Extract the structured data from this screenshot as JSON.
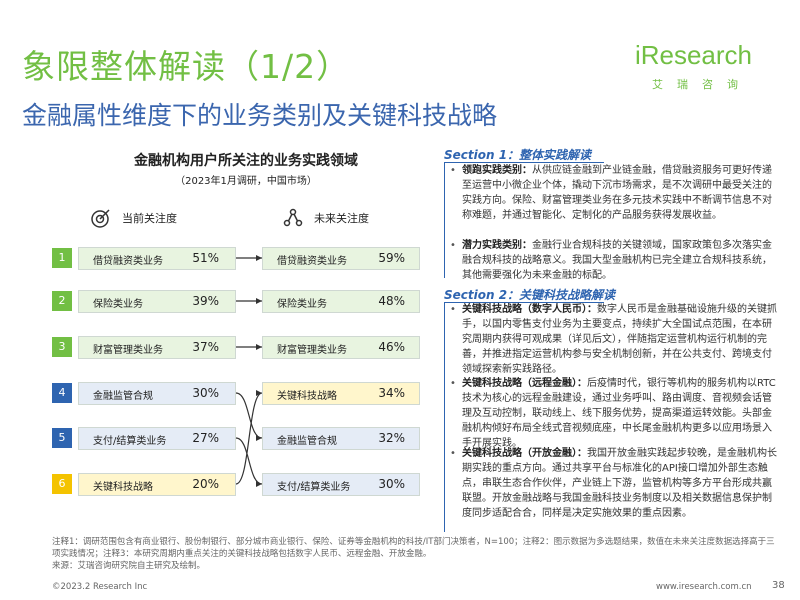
{
  "header": {
    "title": "象限整体解读（1/2）",
    "subtitle": "金融属性维度下的业务类别及关键科技战略"
  },
  "logo": {
    "word": "iResearch",
    "cn": "艾瑞咨询"
  },
  "chart": {
    "title": "金融机构用户所关注的业务实践领域",
    "subtitle": "（2023年1月调研，中国市场）",
    "current_label": "当前关注度",
    "future_label": "未来关注度"
  },
  "rows": [
    {
      "num": "1",
      "group": "green"
    },
    {
      "num": "2",
      "group": "green"
    },
    {
      "num": "3",
      "group": "green"
    },
    {
      "num": "4",
      "group": "blue"
    },
    {
      "num": "5",
      "group": "blue"
    },
    {
      "num": "6",
      "group": "yellow"
    }
  ],
  "chart_data": {
    "type": "table",
    "columns": [
      "当前关注度",
      "未来关注度"
    ],
    "current": [
      {
        "label": "借贷融资类业务",
        "value": "51%"
      },
      {
        "label": "保险类业务",
        "value": "39%"
      },
      {
        "label": "财富管理类业务",
        "value": "37%"
      },
      {
        "label": "金融监管合规",
        "value": "30%"
      },
      {
        "label": "支付/结算类业务",
        "value": "27%"
      },
      {
        "label": "关键科技战略",
        "value": "20%"
      }
    ],
    "future": [
      {
        "label": "借贷融资类业务",
        "value": "59%"
      },
      {
        "label": "保险类业务",
        "value": "48%"
      },
      {
        "label": "财富管理类业务",
        "value": "46%"
      },
      {
        "label": "关键科技战略",
        "value": "34%"
      },
      {
        "label": "金融监管合规",
        "value": "32%"
      },
      {
        "label": "支付/结算类业务",
        "value": "30%"
      }
    ]
  },
  "sections": [
    {
      "heading": "Section 1：整体实践解读",
      "items": [
        {
          "title": "领跑实践类别：",
          "text": "从供应链金融到产业链金融，借贷融资服务可更好传递至运营中小微企业个体，撬动下沉市场需求，是不次调研中最受关注的实践方向。保险、财富管理类业务在多元技术实践中不断调节信息不对称难题，并通过智能化、定制化的产品服务获得发展收益。"
        },
        {
          "title": "潜力实践类别：",
          "text": "金融行业合规科技的关键领域，国家政策包多次落实金融合规科技的战略意义。我国大型金融机构已完全建立合规科技系统，其他需要强化为未来金融的标配。"
        }
      ]
    },
    {
      "heading": "Section 2：关键科技战略解读",
      "items": [
        {
          "title": "关键科技战略（数字人民币）：",
          "text": "数字人民币是金融基础设施升级的关键抓手，以国内零售支付业务为主要变点，持续扩大全国试点范围，在本研究周期内获得可观成果（详见后文），伴随指定运营机构运行机制的完善，并推进指定运营机构参与安全机制创新，并在公共支付、跨境支付领域探索新实践路径。"
        },
        {
          "title": "关键科技战略（远程金融）：",
          "text": "后疫情时代，银行等机构的服务机构以RTC技术为核心的远程金融建设，通过业务呼叫、路由调度、音视频会话管理及互动控制，联动线上、线下服务优势，提高渠道运转效能。头部金融机构倾好布局全线式音视频底座，中长尾金融机构更多以应用场景入手开展实践。"
        },
        {
          "title": "关键科技战略（开放金融）：",
          "text": "我国开放金融实践起步较晚，是金融机构长期实践的重点方向。通过共享平台与标准化的API接口增加外部生态触点，串联生态合作伙伴，产业链上下游，监管机构等多方平台形成共赢联盟。开放金融战略与我国金融科技业务制度以及相关数据信息保护制度同步适配合合，同样是决定实施效果的重点因素。"
        }
      ]
    }
  ],
  "footnote": {
    "line1": "注释1：调研范围包含有商业银行、股份制银行、部分城市商业银行、保险、证券等金融机构的科技/IT部门决策者，N=100；注释2：图示数据为多选题结果，数值在未来关注度数据选择高于三项实践情况；注释3：本研究周期内重点关注的关键科技战略包括数字人民币、远程金融、开放金融。",
    "source": "来源：艾瑞咨询研究院自主研究及绘制。"
  },
  "footer": {
    "copyright": "©2023.2 Research Inc",
    "website": "www.iresearch.com.cn",
    "page": "38"
  },
  "colors": {
    "brand_green": "#72bf44",
    "brand_blue": "#2e64b0",
    "highlight_yellow": "#f4c300"
  }
}
